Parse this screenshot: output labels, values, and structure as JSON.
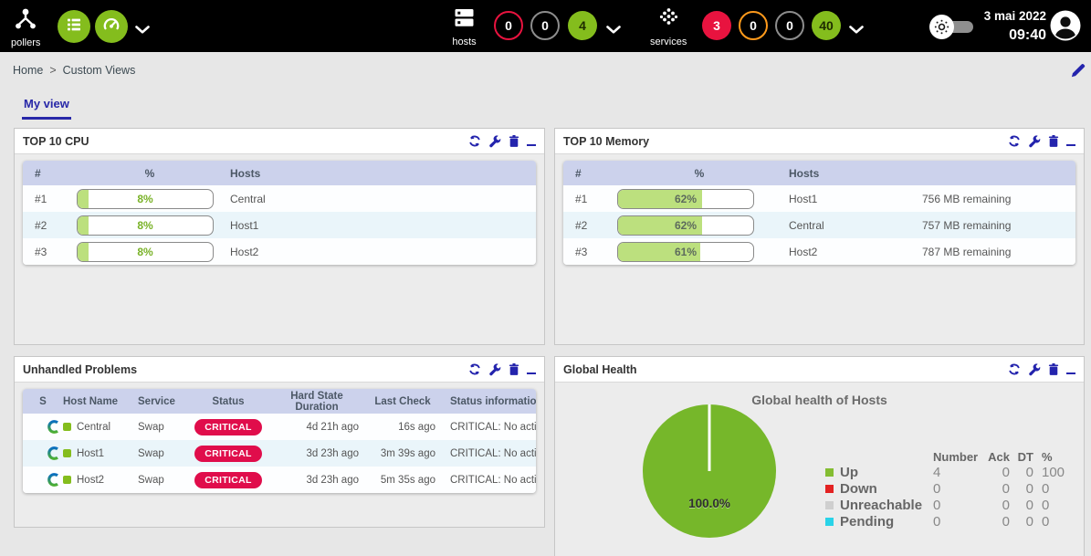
{
  "topbar": {
    "pollers_label": "pollers",
    "hosts": {
      "label": "hosts",
      "badges": [
        {
          "name": "hosts-down",
          "value": "0"
        },
        {
          "name": "hosts-unreachable",
          "value": "0"
        },
        {
          "name": "hosts-up",
          "value": "4"
        }
      ]
    },
    "services": {
      "label": "services",
      "badges": [
        {
          "name": "services-critical",
          "value": "3"
        },
        {
          "name": "services-warning",
          "value": "0"
        },
        {
          "name": "services-unknown",
          "value": "0"
        },
        {
          "name": "services-ok",
          "value": "40"
        }
      ]
    },
    "date": "3 mai 2022",
    "time": "09:40"
  },
  "breadcrumb": {
    "items": [
      "Home",
      "Custom Views"
    ],
    "separator": ">"
  },
  "tabs": [
    {
      "label": "My view",
      "active": true
    }
  ],
  "panels": {
    "cpu": {
      "title": "TOP 10 CPU",
      "columns": [
        "#",
        "%",
        "Hosts"
      ],
      "rows": [
        {
          "rank": "#1",
          "percent": 8,
          "percent_label": "8%",
          "host": "Central"
        },
        {
          "rank": "#2",
          "percent": 8,
          "percent_label": "8%",
          "host": "Host1"
        },
        {
          "rank": "#3",
          "percent": 8,
          "percent_label": "8%",
          "host": "Host2"
        }
      ]
    },
    "memory": {
      "title": "TOP 10 Memory",
      "columns": [
        "#",
        "%",
        "Hosts"
      ],
      "rows": [
        {
          "rank": "#1",
          "percent": 62,
          "percent_label": "62%",
          "host": "Host1",
          "remaining": "756 MB remaining"
        },
        {
          "rank": "#2",
          "percent": 62,
          "percent_label": "62%",
          "host": "Central",
          "remaining": "757 MB remaining"
        },
        {
          "rank": "#3",
          "percent": 61,
          "percent_label": "61%",
          "host": "Host2",
          "remaining": "787 MB remaining"
        }
      ]
    },
    "problems": {
      "title": "Unhandled Problems",
      "columns": [
        "S",
        "Host Name",
        "Service",
        "Status",
        "Hard State Duration",
        "Last Check",
        "Status information"
      ],
      "rows": [
        {
          "host": "Central",
          "service": "Swap",
          "status": "CRITICAL",
          "duration": "4d 21h ago",
          "last_check": "16s ago",
          "info": "CRITICAL: No active swap"
        },
        {
          "host": "Host1",
          "service": "Swap",
          "status": "CRITICAL",
          "duration": "3d 23h ago",
          "last_check": "3m 39s ago",
          "info": "CRITICAL: No active swap"
        },
        {
          "host": "Host2",
          "service": "Swap",
          "status": "CRITICAL",
          "duration": "3d 23h ago",
          "last_check": "5m 35s ago",
          "info": "CRITICAL: No active swap"
        }
      ]
    },
    "health": {
      "title": "Global Health"
    }
  },
  "chart_data": {
    "type": "pie",
    "title": "Global health of Hosts",
    "slices": [
      {
        "label": "Up",
        "value": 100.0,
        "color": "#76b72a"
      }
    ],
    "center_label": "100.0%",
    "legend_position": "right",
    "legend": {
      "headers": [
        "Number",
        "Ack",
        "DT",
        "%"
      ],
      "rows": [
        {
          "label": "Up",
          "color": "#84bd32",
          "number": "4",
          "ack": "0",
          "dt": "0",
          "percent": "100"
        },
        {
          "label": "Down",
          "color": "#e32222",
          "number": "0",
          "ack": "0",
          "dt": "0",
          "percent": "0"
        },
        {
          "label": "Unreachable",
          "color": "#cfcfcf",
          "number": "0",
          "ack": "0",
          "dt": "0",
          "percent": "0"
        },
        {
          "label": "Pending",
          "color": "#29d3e8",
          "number": "0",
          "ack": "0",
          "dt": "0",
          "percent": "0"
        }
      ]
    }
  },
  "colors": {
    "accent_green": "#84bd1d",
    "critical_red": "#e00d4b",
    "warning_orange": "#ff9a1b",
    "action_navy": "#2424ad",
    "pie_green": "#76b72a"
  }
}
